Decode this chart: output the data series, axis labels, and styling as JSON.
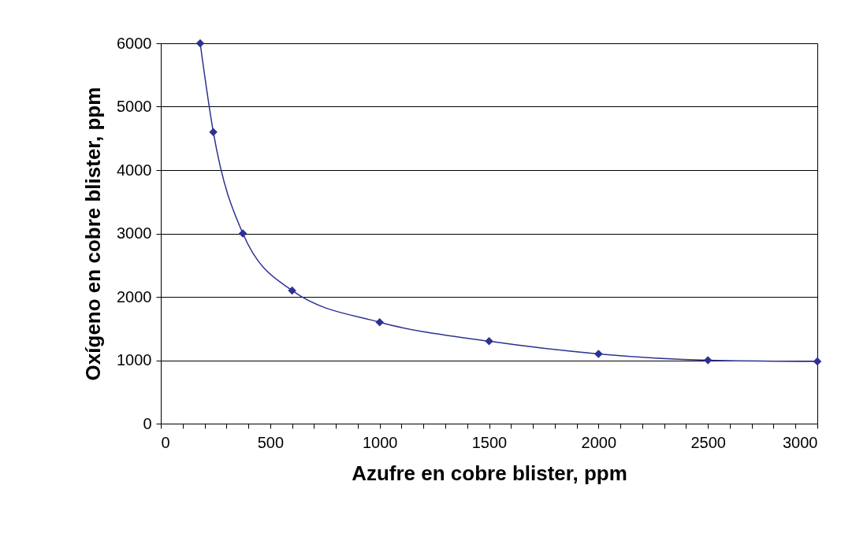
{
  "chart_data": {
    "type": "line",
    "xlabel": "Azufre en cobre blister, ppm",
    "ylabel": "Oxígeno en cobre blister, ppm",
    "x": [
      180,
      240,
      375,
      600,
      1000,
      1500,
      2000,
      2500,
      3000
    ],
    "series": [
      {
        "color": "#2e3192",
        "values": [
          6000,
          4600,
          3000,
          2100,
          1600,
          1300,
          1100,
          1000,
          980
        ]
      }
    ],
    "xlim": [
      0,
      3000
    ],
    "ylim": [
      0,
      6000
    ],
    "xticks": [
      0,
      {
        "value": 100,
        "label": null
      },
      {
        "value": 200,
        "label": null
      },
      {
        "value": 300,
        "label": null
      },
      {
        "value": 400,
        "label": null
      },
      500,
      {
        "value": 600,
        "label": null
      },
      {
        "value": 700,
        "label": null
      },
      {
        "value": 800,
        "label": null
      },
      {
        "value": 900,
        "label": null
      },
      1000,
      {
        "value": 1100,
        "label": null
      },
      {
        "value": 1200,
        "label": null
      },
      {
        "value": 1300,
        "label": null
      },
      {
        "value": 1400,
        "label": null
      },
      1500,
      {
        "value": 1600,
        "label": null
      },
      {
        "value": 1700,
        "label": null
      },
      {
        "value": 1800,
        "label": null
      },
      {
        "value": 1900,
        "label": null
      },
      2000,
      {
        "value": 2100,
        "label": null
      },
      {
        "value": 2200,
        "label": null
      },
      {
        "value": 2300,
        "label": null
      },
      {
        "value": 2400,
        "label": null
      },
      2500,
      {
        "value": 2600,
        "label": null
      },
      {
        "value": 2700,
        "label": null
      },
      {
        "value": 2800,
        "label": null
      },
      {
        "value": 2900,
        "label": null
      },
      3000
    ],
    "yticks": [
      0,
      1000,
      2000,
      3000,
      4000,
      5000,
      6000
    ],
    "grid": "y",
    "marker": "diamond",
    "line_style": "solid"
  }
}
